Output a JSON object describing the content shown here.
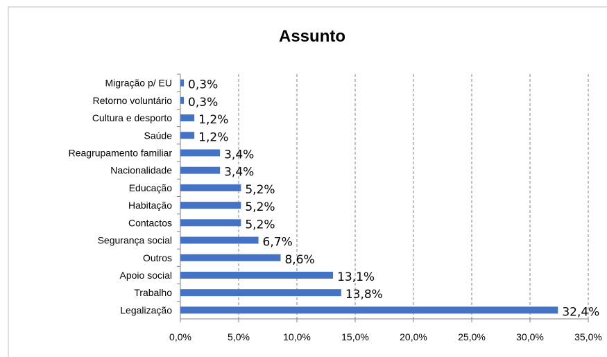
{
  "chart_data": {
    "type": "bar",
    "orientation": "horizontal",
    "title": "Assunto",
    "categories": [
      "Migração p/ EU",
      "Retorno voluntário",
      "Cultura e desporto",
      "Saúde",
      "Reagrupamento familiar",
      "Nacionalidade",
      "Educação",
      "Habitação",
      "Contactos",
      "Segurança social",
      "Outros",
      "Apoio social",
      "Trabalho",
      "Legalização"
    ],
    "values": [
      0.3,
      0.3,
      1.2,
      1.2,
      3.4,
      3.4,
      5.2,
      5.2,
      5.2,
      6.7,
      8.6,
      13.1,
      13.8,
      32.4
    ],
    "value_labels": [
      "0,3%",
      "0,3%",
      "1,2%",
      "1,2%",
      "3,4%",
      "3,4%",
      "5,2%",
      "5,2%",
      "5,2%",
      "6,7%",
      "8,6%",
      "13,1%",
      "13,8%",
      "32,4%"
    ],
    "color": "#4472c4",
    "xlim": [
      0,
      35
    ],
    "xticks": [
      {
        "value": 0,
        "label": "0,0%"
      },
      {
        "value": 5,
        "label": "5,0%"
      },
      {
        "value": 10,
        "label": "10,0%"
      },
      {
        "value": 15,
        "label": "15,0%"
      },
      {
        "value": 20,
        "label": "20,0%"
      },
      {
        "value": 25,
        "label": "25,0%"
      },
      {
        "value": 30,
        "label": "30,0%"
      },
      {
        "value": 35,
        "label": "35,0%"
      }
    ],
    "grid": true
  }
}
